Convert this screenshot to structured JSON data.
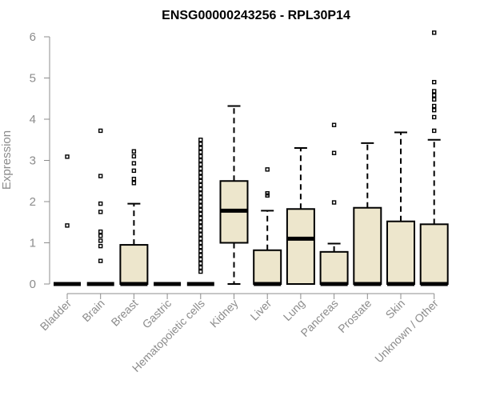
{
  "chart_data": {
    "type": "boxplot",
    "title": "ENSG00000243256 - RPL30P14",
    "ylabel": "Expression",
    "xlabel": "",
    "ylim": [
      0,
      6.2
    ],
    "yticks": [
      0,
      1,
      2,
      3,
      4,
      5,
      6
    ],
    "box_color": "#ede6cc",
    "categories": [
      "Bladder",
      "Brain",
      "Breast",
      "Gastric",
      "Hematopoietic cells",
      "Kidney",
      "Liver",
      "Lung",
      "Pancreas",
      "Prostate",
      "Skin",
      "Unknown / Other"
    ],
    "boxes": [
      {
        "category": "Bladder",
        "q1": 0,
        "median": 0,
        "q3": 0,
        "whisker_low": 0,
        "whisker_high": 0,
        "outliers": [
          1.42,
          3.09
        ]
      },
      {
        "category": "Brain",
        "q1": 0,
        "median": 0,
        "q3": 0,
        "whisker_low": 0,
        "whisker_high": 0,
        "outliers": [
          0.56,
          0.92,
          1.05,
          1.17,
          1.27,
          1.75,
          1.95,
          2.62,
          3.72
        ]
      },
      {
        "category": "Breast",
        "q1": 0,
        "median": 0,
        "q3": 0.95,
        "whisker_low": 0,
        "whisker_high": 1.95,
        "outliers": [
          2.45,
          2.55,
          2.75,
          2.93,
          3.1,
          3.22
        ]
      },
      {
        "category": "Gastric",
        "q1": 0,
        "median": 0,
        "q3": 0,
        "whisker_low": 0,
        "whisker_high": 0,
        "outliers": []
      },
      {
        "category": "Hematopoietic cells",
        "q1": 0,
        "median": 0,
        "q3": 0,
        "whisker_low": 0,
        "whisker_high": 0,
        "outliers": [
          0.3,
          0.4,
          0.5,
          0.6,
          0.7,
          0.8,
          0.9,
          1.0,
          1.1,
          1.2,
          1.3,
          1.4,
          1.5,
          1.6,
          1.7,
          1.8,
          1.9,
          2.0,
          2.1,
          2.2,
          2.3,
          2.4,
          2.5,
          2.6,
          2.7,
          2.8,
          2.9,
          3.0,
          3.1,
          3.2,
          3.3,
          3.4,
          3.5
        ]
      },
      {
        "category": "Kidney",
        "q1": 1.0,
        "median": 1.78,
        "q3": 2.5,
        "whisker_low": 0,
        "whisker_high": 4.32,
        "outliers": []
      },
      {
        "category": "Liver",
        "q1": 0,
        "median": 0,
        "q3": 0.82,
        "whisker_low": 0,
        "whisker_high": 1.78,
        "outliers": [
          2.15,
          2.2,
          2.78
        ]
      },
      {
        "category": "Lung",
        "q1": 0,
        "median": 1.1,
        "q3": 1.82,
        "whisker_low": 0,
        "whisker_high": 3.3,
        "outliers": []
      },
      {
        "category": "Pancreas",
        "q1": 0,
        "median": 0,
        "q3": 0.78,
        "whisker_low": 0,
        "whisker_high": 0.98,
        "outliers": [
          1.98,
          3.18,
          3.86
        ]
      },
      {
        "category": "Prostate",
        "q1": 0,
        "median": 0,
        "q3": 1.85,
        "whisker_low": 0,
        "whisker_high": 3.42,
        "outliers": []
      },
      {
        "category": "Skin",
        "q1": 0,
        "median": 0,
        "q3": 1.52,
        "whisker_low": 0,
        "whisker_high": 3.68,
        "outliers": []
      },
      {
        "category": "Unknown / Other",
        "q1": 0,
        "median": 0,
        "q3": 1.45,
        "whisker_low": 0,
        "whisker_high": 3.5,
        "outliers": [
          3.72,
          4.05,
          4.22,
          4.32,
          4.48,
          4.58,
          4.68,
          4.9,
          6.1
        ]
      }
    ]
  }
}
